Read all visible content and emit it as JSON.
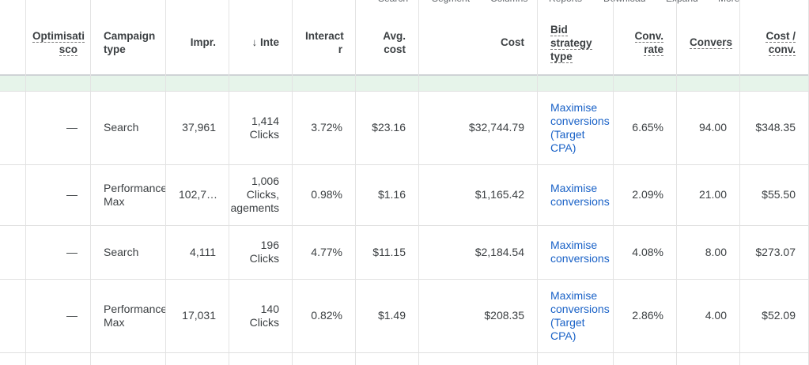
{
  "toolbar": [
    "Search",
    "Segment",
    "Columns",
    "Reports",
    "Download",
    "Expand",
    "More"
  ],
  "table": {
    "headers": [
      [
        "Optimisati",
        "sco"
      ],
      [
        "Campaign",
        "type"
      ],
      [
        "Impr."
      ],
      [
        "Inte"
      ],
      [
        "Interact",
        "r"
      ],
      [
        "Avg.",
        "cost"
      ],
      [
        "Cost"
      ],
      [
        "Bid",
        "strategy",
        "type"
      ],
      [
        "Conv.",
        "rate"
      ],
      [
        "Convers"
      ],
      [
        "Cost /",
        "conv."
      ]
    ],
    "rows": [
      [
        [
          "—"
        ],
        [
          "Search"
        ],
        [
          "37,961"
        ],
        [
          "1,414",
          "Clicks"
        ],
        [
          "3.72%"
        ],
        [
          "$23.16"
        ],
        [
          "$32,744.79"
        ],
        [
          "Maximise",
          "conversions",
          "(Target",
          "CPA)"
        ],
        [
          "6.65%"
        ],
        [
          "94.00"
        ],
        [
          "$348.35"
        ]
      ],
      [
        [
          "—"
        ],
        [
          "Performance",
          "Max"
        ],
        [
          "102,7…"
        ],
        [
          "1,006",
          "Clicks,",
          "agements"
        ],
        [
          "0.98%"
        ],
        [
          "$1.16"
        ],
        [
          "$1,165.42"
        ],
        [
          "Maximise",
          "conversions"
        ],
        [
          "2.09%"
        ],
        [
          "21.00"
        ],
        [
          "$55.50"
        ]
      ],
      [
        [
          "—"
        ],
        [
          "Search"
        ],
        [
          "4,111"
        ],
        [
          "196",
          "Clicks"
        ],
        [
          "4.77%"
        ],
        [
          "$11.15"
        ],
        [
          "$2,184.54"
        ],
        [
          "Maximise",
          "conversions"
        ],
        [
          "4.08%"
        ],
        [
          "8.00"
        ],
        [
          "$273.07"
        ]
      ],
      [
        [
          "—"
        ],
        [
          "Performance",
          "Max"
        ],
        [
          "17,031"
        ],
        [
          "140",
          "Clicks"
        ],
        [
          "0.82%"
        ],
        [
          "$1.49"
        ],
        [
          "$208.35"
        ],
        [
          "Maximise",
          "conversions",
          "(Target",
          "CPA)"
        ],
        [
          "2.86%"
        ],
        [
          "4.00"
        ],
        [
          "$52.09"
        ]
      ]
    ]
  }
}
